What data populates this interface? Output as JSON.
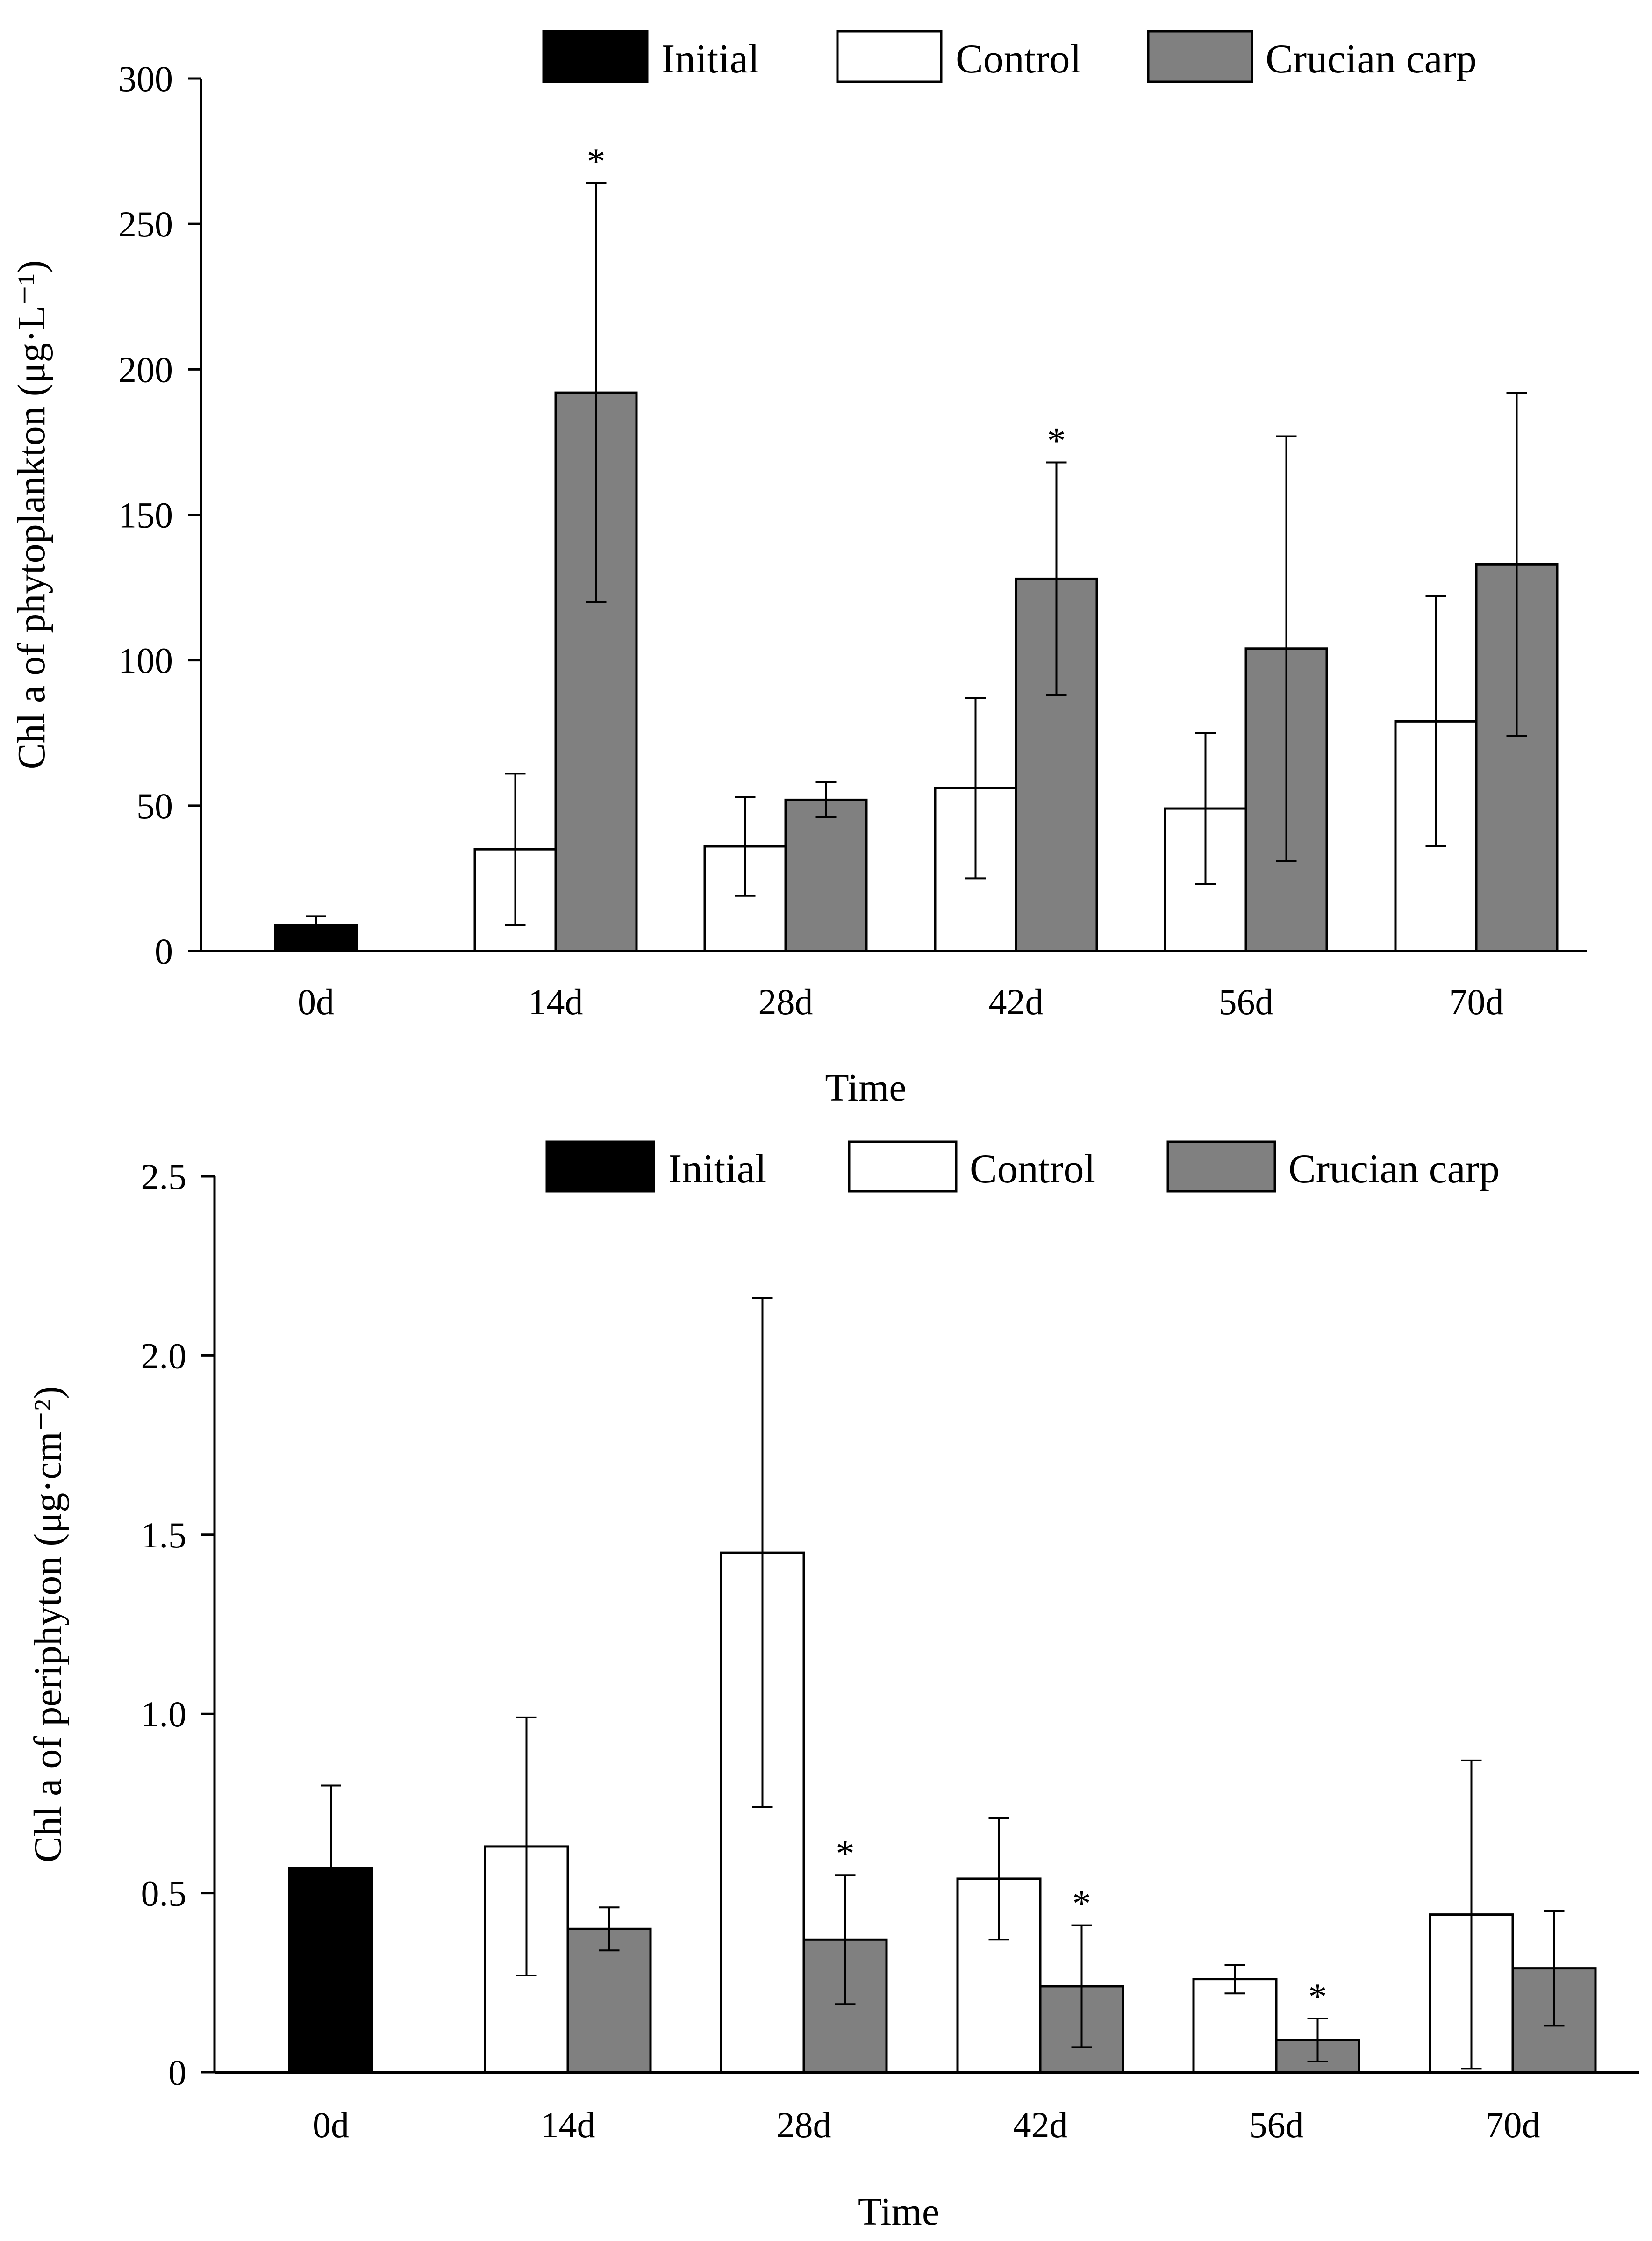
{
  "colors": {
    "initial": "#000000",
    "control": "#ffffff",
    "crucian": "#808080",
    "ink": "#000000"
  },
  "chart_data": [
    {
      "type": "bar",
      "id": "phytoplankton",
      "title": "",
      "xlabel": "Time",
      "ylabel": "Chl a  of  phytoplankton (μg·L⁻¹)",
      "ylim": [
        0,
        300
      ],
      "yticks": [
        0,
        50,
        100,
        150,
        200,
        250,
        300
      ],
      "yticklabels": [
        "0",
        "50",
        "100",
        "150",
        "200",
        "250",
        "300"
      ],
      "categories": [
        "0d",
        "14d",
        "28d",
        "42d",
        "56d",
        "70d"
      ],
      "legend": [
        "Initial",
        "Control",
        "Crucian carp"
      ],
      "legend_position": "top",
      "series": [
        {
          "name": "Initial",
          "key": "initial",
          "values": [
            9,
            null,
            null,
            null,
            null,
            null
          ],
          "error": [
            3,
            null,
            null,
            null,
            null,
            null
          ],
          "sig": [
            false,
            false,
            false,
            false,
            false,
            false
          ]
        },
        {
          "name": "Control",
          "key": "control",
          "values": [
            null,
            35,
            36,
            56,
            49,
            79
          ],
          "error": [
            null,
            26,
            17,
            31,
            26,
            43
          ],
          "sig": [
            false,
            false,
            false,
            false,
            false,
            false
          ]
        },
        {
          "name": "Crucian carp",
          "key": "crucian",
          "values": [
            null,
            192,
            52,
            128,
            104,
            133
          ],
          "error": [
            null,
            72,
            6,
            40,
            73,
            59
          ],
          "sig": [
            false,
            true,
            false,
            true,
            false,
            false
          ]
        }
      ]
    },
    {
      "type": "bar",
      "id": "periphyton",
      "title": "",
      "xlabel": "Time",
      "ylabel": "Chl a  of  periphyton (μg·cm⁻²)",
      "ylim": [
        0,
        2.5
      ],
      "yticks": [
        0,
        0.5,
        1.0,
        1.5,
        2.0,
        2.5
      ],
      "yticklabels": [
        "0",
        "0.5",
        "1.0",
        "1.5",
        "2.0",
        "2.5"
      ],
      "categories": [
        "0d",
        "14d",
        "28d",
        "42d",
        "56d",
        "70d"
      ],
      "legend": [
        "Initial",
        "Control",
        "Crucian carp"
      ],
      "legend_position": "top",
      "series": [
        {
          "name": "Initial",
          "key": "initial",
          "values": [
            0.57,
            null,
            null,
            null,
            null,
            null
          ],
          "error": [
            0.23,
            null,
            null,
            null,
            null,
            null
          ],
          "sig": [
            false,
            false,
            false,
            false,
            false,
            false
          ]
        },
        {
          "name": "Control",
          "key": "control",
          "values": [
            null,
            0.63,
            1.45,
            0.54,
            0.26,
            0.44
          ],
          "error": [
            null,
            0.36,
            0.71,
            0.17,
            0.04,
            0.43
          ],
          "sig": [
            false,
            false,
            false,
            false,
            false,
            false
          ]
        },
        {
          "name": "Crucian carp",
          "key": "crucian",
          "values": [
            null,
            0.4,
            0.37,
            0.24,
            0.09,
            0.29
          ],
          "error": [
            null,
            0.06,
            0.18,
            0.17,
            0.06,
            0.16
          ],
          "sig": [
            false,
            false,
            true,
            true,
            true,
            false
          ]
        }
      ],
      "sig_marker": "*"
    }
  ]
}
